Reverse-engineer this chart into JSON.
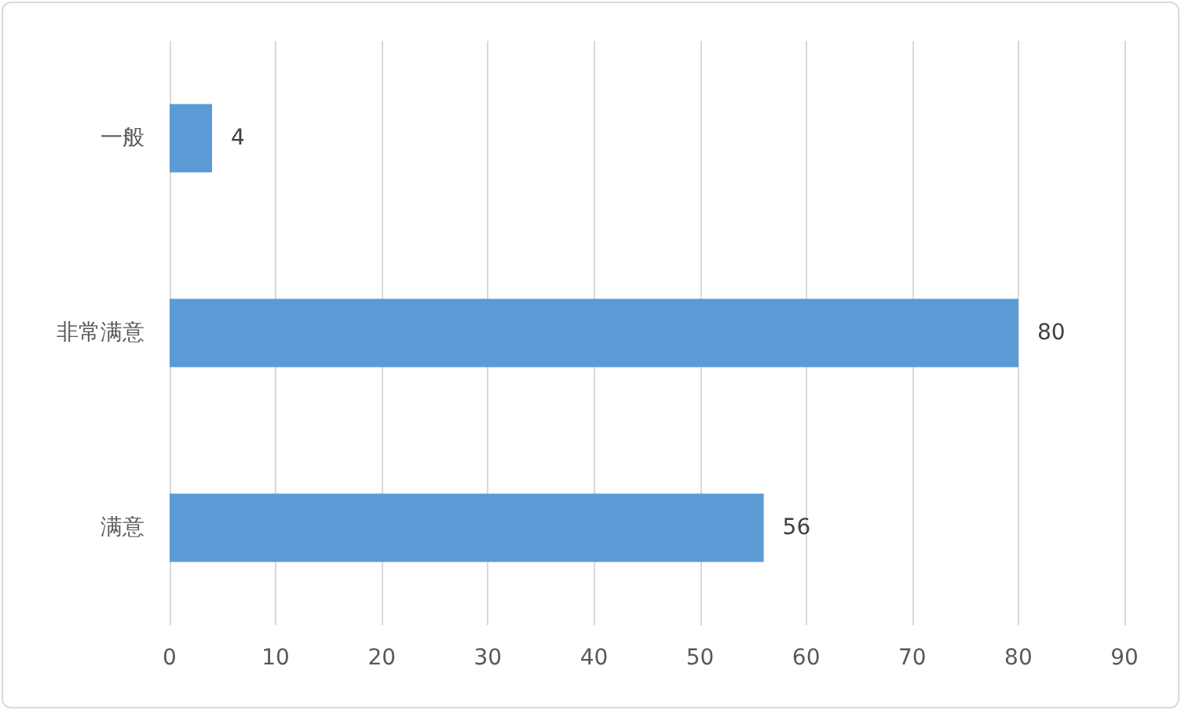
{
  "chart_data": {
    "type": "bar",
    "orientation": "horizontal",
    "categories": [
      "一般",
      "非常满意",
      "满意"
    ],
    "values": [
      4,
      80,
      56
    ],
    "color": "#5b9bd5",
    "xlim": [
      0,
      90
    ],
    "xticks": [
      0,
      10,
      20,
      30,
      40,
      50,
      60,
      70,
      80,
      90
    ],
    "grid": "x",
    "data_labels": true
  }
}
